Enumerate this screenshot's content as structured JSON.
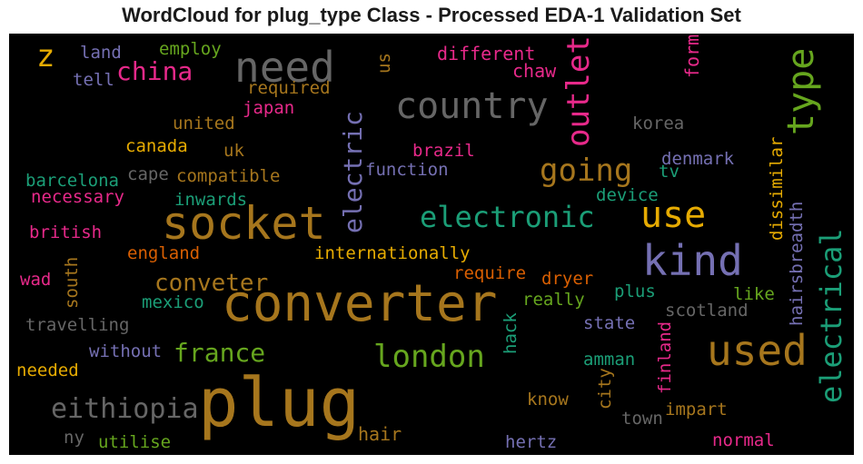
{
  "title": "WordCloud for plug_type Class - Processed EDA-1 Validation Set",
  "colors": {
    "background": "#000000",
    "gold": "#e6ab02",
    "brown": "#a6761d",
    "gray": "#666666",
    "purple": "#7570b3",
    "pink": "#e7298a",
    "teal": "#1b9e77",
    "green": "#66a61e",
    "orange": "#d95f02"
  },
  "chart_data": {
    "type": "wordcloud",
    "title": "WordCloud for plug_type Class - Processed EDA-1 Validation Set",
    "words": [
      {
        "text": "z",
        "color": "gold"
      },
      {
        "text": "land",
        "color": "purple"
      },
      {
        "text": "employ",
        "color": "green"
      },
      {
        "text": "tell",
        "color": "purple"
      },
      {
        "text": "china",
        "color": "pink"
      },
      {
        "text": "need",
        "color": "gray"
      },
      {
        "text": "required",
        "color": "brown"
      },
      {
        "text": "us",
        "color": "brown"
      },
      {
        "text": "different",
        "color": "pink"
      },
      {
        "text": "chaw",
        "color": "pink"
      },
      {
        "text": "form",
        "color": "pink"
      },
      {
        "text": "country",
        "color": "gray"
      },
      {
        "text": "outlet",
        "color": "pink"
      },
      {
        "text": "type",
        "color": "green"
      },
      {
        "text": "japan",
        "color": "pink"
      },
      {
        "text": "united",
        "color": "brown"
      },
      {
        "text": "korea",
        "color": "gray"
      },
      {
        "text": "canada",
        "color": "gold"
      },
      {
        "text": "uk",
        "color": "brown"
      },
      {
        "text": "electric",
        "color": "purple"
      },
      {
        "text": "brazil",
        "color": "pink"
      },
      {
        "text": "going",
        "color": "brown"
      },
      {
        "text": "denmark",
        "color": "purple"
      },
      {
        "text": "function",
        "color": "purple"
      },
      {
        "text": "tv",
        "color": "teal"
      },
      {
        "text": "dissimilar",
        "color": "gold"
      },
      {
        "text": "barcelona",
        "color": "teal"
      },
      {
        "text": "cape",
        "color": "gray"
      },
      {
        "text": "compatible",
        "color": "brown"
      },
      {
        "text": "necessary",
        "color": "pink"
      },
      {
        "text": "inwards",
        "color": "teal"
      },
      {
        "text": "device",
        "color": "teal"
      },
      {
        "text": "socket",
        "color": "brown"
      },
      {
        "text": "electronic",
        "color": "teal"
      },
      {
        "text": "use",
        "color": "gold"
      },
      {
        "text": "hairsbreadth",
        "color": "purple"
      },
      {
        "text": "british",
        "color": "pink"
      },
      {
        "text": "kind",
        "color": "purple"
      },
      {
        "text": "electrical",
        "color": "teal"
      },
      {
        "text": "england",
        "color": "orange"
      },
      {
        "text": "internationally",
        "color": "gold"
      },
      {
        "text": "south",
        "color": "brown"
      },
      {
        "text": "wad",
        "color": "pink"
      },
      {
        "text": "conveter",
        "color": "brown"
      },
      {
        "text": "require",
        "color": "orange"
      },
      {
        "text": "dryer",
        "color": "orange"
      },
      {
        "text": "converter",
        "color": "brown"
      },
      {
        "text": "plus",
        "color": "teal"
      },
      {
        "text": "like",
        "color": "green"
      },
      {
        "text": "mexico",
        "color": "teal"
      },
      {
        "text": "really",
        "color": "green"
      },
      {
        "text": "scotland",
        "color": "gray"
      },
      {
        "text": "travelling",
        "color": "gray"
      },
      {
        "text": "state",
        "color": "purple"
      },
      {
        "text": "hack",
        "color": "teal"
      },
      {
        "text": "france",
        "color": "green"
      },
      {
        "text": "used",
        "color": "brown"
      },
      {
        "text": "without",
        "color": "purple"
      },
      {
        "text": "london",
        "color": "green"
      },
      {
        "text": "amman",
        "color": "teal"
      },
      {
        "text": "needed",
        "color": "gold"
      },
      {
        "text": "finland",
        "color": "pink"
      },
      {
        "text": "city",
        "color": "brown"
      },
      {
        "text": "eithiopia",
        "color": "gray"
      },
      {
        "text": "plug",
        "color": "brown"
      },
      {
        "text": "know",
        "color": "brown"
      },
      {
        "text": "impart",
        "color": "brown"
      },
      {
        "text": "town",
        "color": "gray"
      },
      {
        "text": "hair",
        "color": "brown"
      },
      {
        "text": "ny",
        "color": "gray"
      },
      {
        "text": "utilise",
        "color": "green"
      },
      {
        "text": "hertz",
        "color": "purple"
      },
      {
        "text": "normal",
        "color": "pink"
      }
    ]
  }
}
